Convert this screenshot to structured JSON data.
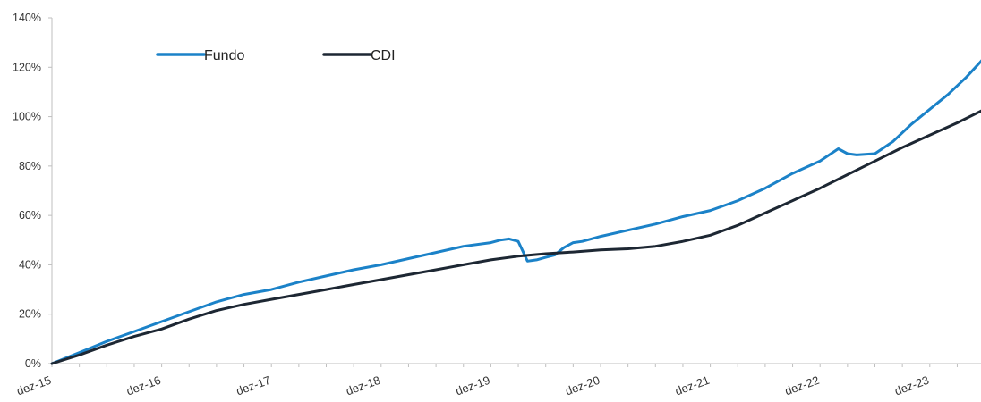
{
  "chart_data": {
    "type": "line",
    "title": "",
    "xlabel": "",
    "ylabel": "",
    "ylim": [
      0,
      140
    ],
    "y_ticks": [
      "0%",
      "20%",
      "40%",
      "60%",
      "80%",
      "100%",
      "120%",
      "140%"
    ],
    "x_ticks": [
      "dez-15",
      "dez-16",
      "dez-17",
      "dez-18",
      "dez-19",
      "dez-20",
      "dez-21",
      "dez-22",
      "dez-23"
    ],
    "x_range": [
      "2015-12",
      "2024-06"
    ],
    "grid": false,
    "legend": {
      "placement": "top-left",
      "orientation": "horizontal"
    },
    "series": [
      {
        "name": "Fundo",
        "color": "#1b82c8",
        "points": [
          [
            "2015-12",
            0
          ],
          [
            "2016-03",
            4.5
          ],
          [
            "2016-06",
            9
          ],
          [
            "2016-09",
            13
          ],
          [
            "2016-12",
            17
          ],
          [
            "2017-03",
            21
          ],
          [
            "2017-06",
            25
          ],
          [
            "2017-09",
            28
          ],
          [
            "2017-12",
            30
          ],
          [
            "2018-03",
            33
          ],
          [
            "2018-06",
            35.5
          ],
          [
            "2018-09",
            38
          ],
          [
            "2018-12",
            40
          ],
          [
            "2019-03",
            42.5
          ],
          [
            "2019-06",
            45
          ],
          [
            "2019-09",
            47.5
          ],
          [
            "2019-12",
            49
          ],
          [
            "2020-01",
            50
          ],
          [
            "2020-02",
            50.5
          ],
          [
            "2020-03",
            49.5
          ],
          [
            "2020-04",
            41.5
          ],
          [
            "2020-05",
            42
          ],
          [
            "2020-06",
            43
          ],
          [
            "2020-07",
            44
          ],
          [
            "2020-08",
            47
          ],
          [
            "2020-09",
            49
          ],
          [
            "2020-10",
            49.5
          ],
          [
            "2020-12",
            51.5
          ],
          [
            "2021-03",
            54
          ],
          [
            "2021-06",
            56.5
          ],
          [
            "2021-09",
            59.5
          ],
          [
            "2021-12",
            62
          ],
          [
            "2022-03",
            66
          ],
          [
            "2022-06",
            71
          ],
          [
            "2022-09",
            77
          ],
          [
            "2022-12",
            82
          ],
          [
            "2023-02",
            87
          ],
          [
            "2023-03",
            85
          ],
          [
            "2023-04",
            84.5
          ],
          [
            "2023-06",
            85
          ],
          [
            "2023-08",
            90
          ],
          [
            "2023-10",
            97
          ],
          [
            "2023-12",
            103
          ],
          [
            "2024-02",
            109
          ],
          [
            "2024-04",
            116
          ],
          [
            "2024-06",
            124
          ]
        ]
      },
      {
        "name": "CDI",
        "color": "#1d2733",
        "points": [
          [
            "2015-12",
            0
          ],
          [
            "2016-03",
            3.5
          ],
          [
            "2016-06",
            7.5
          ],
          [
            "2016-09",
            11
          ],
          [
            "2016-12",
            14
          ],
          [
            "2017-03",
            18
          ],
          [
            "2017-06",
            21.5
          ],
          [
            "2017-09",
            24
          ],
          [
            "2017-12",
            26
          ],
          [
            "2018-03",
            28
          ],
          [
            "2018-06",
            30
          ],
          [
            "2018-09",
            32
          ],
          [
            "2018-12",
            34
          ],
          [
            "2019-03",
            36
          ],
          [
            "2019-06",
            38
          ],
          [
            "2019-09",
            40
          ],
          [
            "2019-12",
            42
          ],
          [
            "2020-03",
            43.5
          ],
          [
            "2020-06",
            44.5
          ],
          [
            "2020-09",
            45.2
          ],
          [
            "2020-12",
            46
          ],
          [
            "2021-03",
            46.5
          ],
          [
            "2021-06",
            47.5
          ],
          [
            "2021-09",
            49.5
          ],
          [
            "2021-12",
            52
          ],
          [
            "2022-03",
            56
          ],
          [
            "2022-06",
            61
          ],
          [
            "2022-09",
            66
          ],
          [
            "2022-12",
            71
          ],
          [
            "2023-03",
            76.5
          ],
          [
            "2023-06",
            82
          ],
          [
            "2023-09",
            87.5
          ],
          [
            "2023-12",
            92.5
          ],
          [
            "2024-03",
            97.5
          ],
          [
            "2024-06",
            103
          ]
        ]
      }
    ]
  }
}
